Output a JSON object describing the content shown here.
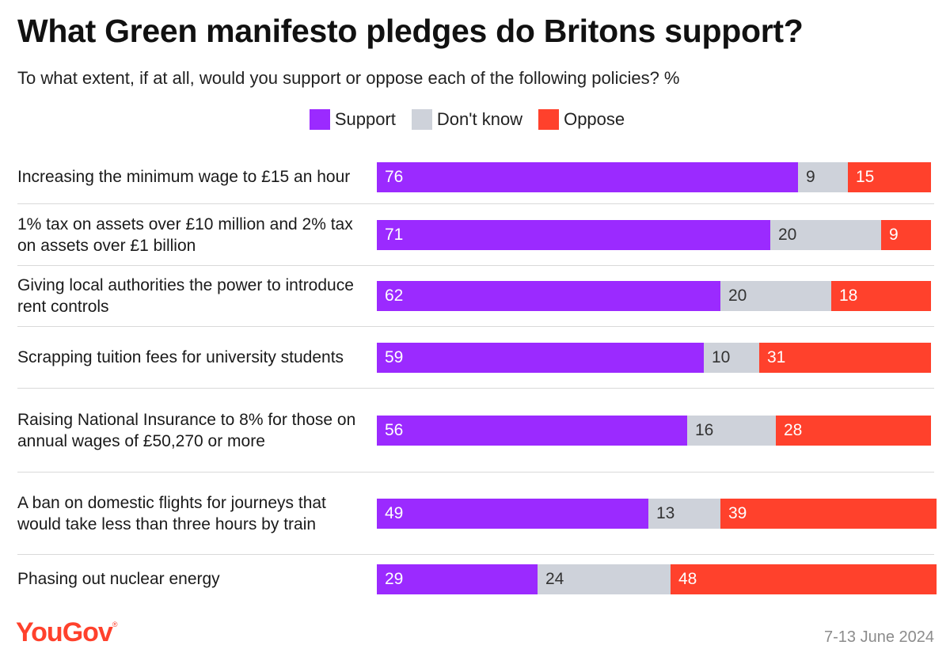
{
  "header": {
    "title": "What Green manifesto pledges do Britons support?",
    "subtitle": "To what extent, if at all, would you support or oppose each of the following policies? %"
  },
  "legend": [
    {
      "label": "Support",
      "color": "#9b2aff"
    },
    {
      "label": "Don't know",
      "color": "#ced2da"
    },
    {
      "label": "Oppose",
      "color": "#ff412c"
    }
  ],
  "footer": {
    "brand": "YouGov",
    "date": "7-13 June 2024"
  },
  "chart_data": {
    "type": "bar",
    "orientation": "horizontal",
    "stacked": true,
    "title": "What Green manifesto pledges do Britons support?",
    "subtitle": "To what extent, if at all, would you support or oppose each of the following policies? %",
    "categories": [
      "Increasing the minimum wage to £15 an hour",
      "1% tax on assets over £10 million and 2% tax on assets over £1 billion",
      "Giving local authorities the power to introduce rent controls",
      "Scrapping tuition fees for university students",
      "Raising National Insurance to 8% for those on annual wages of £50,270 or more",
      "A ban on domestic flights for journeys that would take less than three hours by train",
      "Phasing out nuclear energy"
    ],
    "series": [
      {
        "name": "Support",
        "color": "#9b2aff",
        "values": [
          76,
          71,
          62,
          59,
          56,
          49,
          29
        ]
      },
      {
        "name": "Don't know",
        "color": "#ced2da",
        "values": [
          9,
          20,
          20,
          10,
          16,
          13,
          24
        ]
      },
      {
        "name": "Oppose",
        "color": "#ff412c",
        "values": [
          15,
          9,
          18,
          31,
          28,
          39,
          48
        ]
      }
    ],
    "legend_position": "top-center",
    "xlabel": "",
    "ylabel": ""
  }
}
